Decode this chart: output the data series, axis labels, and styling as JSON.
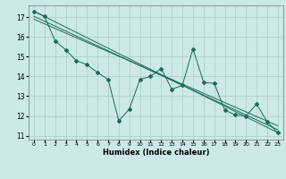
{
  "title": "",
  "xlabel": "Humidex (Indice chaleur)",
  "ylabel": "",
  "bg_color": "#cce8e8",
  "grid_color": "#aacccc",
  "line_color": "#1a6b5a",
  "xlim": [
    -0.5,
    23.5
  ],
  "ylim": [
    10.8,
    17.6
  ],
  "yticks": [
    11,
    12,
    13,
    14,
    15,
    16,
    17
  ],
  "xticks": [
    0,
    1,
    2,
    3,
    4,
    5,
    6,
    7,
    8,
    9,
    10,
    11,
    12,
    13,
    14,
    15,
    16,
    17,
    18,
    19,
    20,
    21,
    22,
    23
  ],
  "series1_x": [
    0,
    1,
    2,
    3,
    4,
    5,
    6,
    7,
    8,
    9,
    10,
    11,
    12,
    13,
    14,
    15,
    16,
    17,
    18,
    19,
    20,
    21,
    22,
    23
  ],
  "series1_y": [
    17.3,
    17.05,
    15.8,
    15.35,
    14.8,
    14.6,
    14.2,
    13.85,
    11.75,
    12.35,
    13.85,
    14.0,
    14.4,
    13.35,
    13.55,
    15.4,
    13.7,
    13.65,
    12.3,
    12.05,
    12.0,
    12.6,
    11.7,
    11.15
  ],
  "series2_x": [
    0,
    23
  ],
  "series2_y": [
    17.3,
    11.15
  ],
  "series3_x": [
    0,
    23
  ],
  "series3_y": [
    17.05,
    11.3
  ],
  "series4_x": [
    0,
    23
  ],
  "series4_y": [
    16.9,
    11.5
  ]
}
